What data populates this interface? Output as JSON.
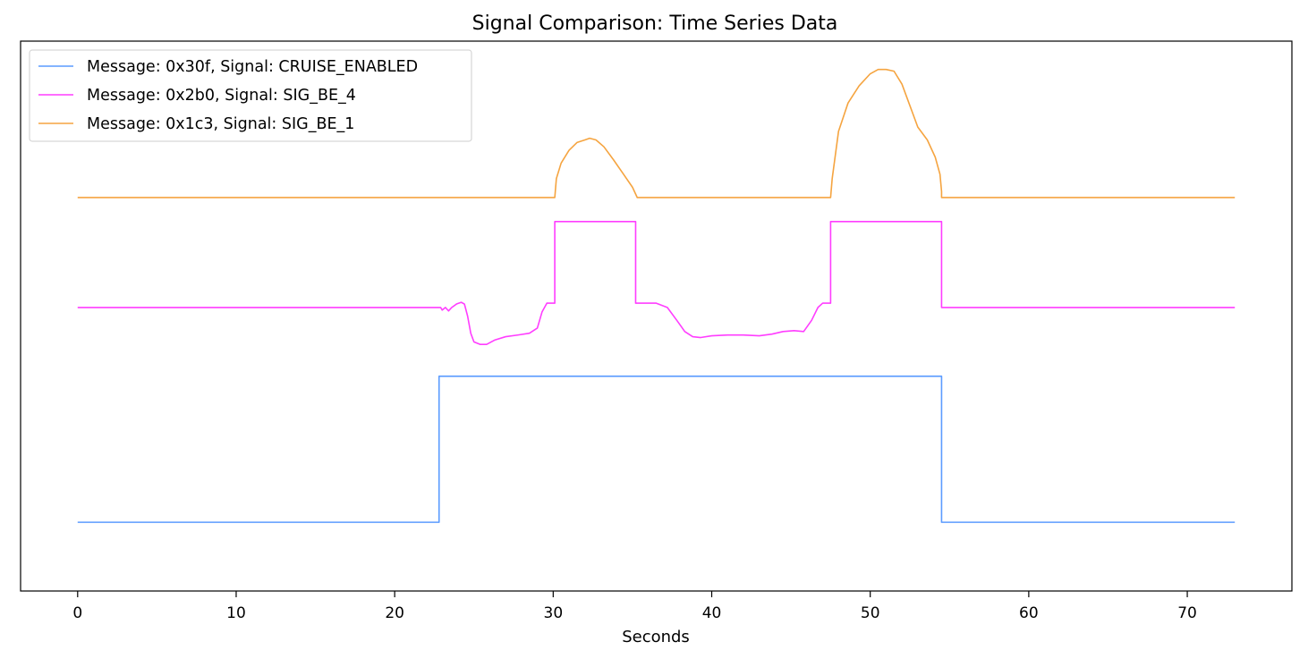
{
  "chart_data": {
    "type": "line",
    "title": "Signal Comparison: Time Series Data",
    "xlabel": "Seconds",
    "ylabel": "",
    "xlim": [
      -3.6,
      76.6
    ],
    "ylim": [
      -0.8,
      5.6
    ],
    "x_ticks": [
      0,
      10,
      20,
      30,
      40,
      50,
      60,
      70
    ],
    "y_ticks_shown": false,
    "grid": false,
    "legend_position": "upper-left",
    "series": [
      {
        "name": "Message: 0x30f, Signal: CRUISE_ENABLED",
        "color": "#5c9cff",
        "points": [
          [
            0,
            0
          ],
          [
            22.8,
            0
          ],
          [
            22.8,
            1.7
          ],
          [
            54.5,
            1.7
          ],
          [
            54.5,
            0
          ],
          [
            73,
            0
          ]
        ]
      },
      {
        "name": "Message: 0x2b0, Signal: SIG_BE_4",
        "color": "#ff3dff",
        "points": [
          [
            0,
            2.5
          ],
          [
            22.9,
            2.5
          ],
          [
            23.0,
            2.47
          ],
          [
            23.2,
            2.5
          ],
          [
            23.4,
            2.46
          ],
          [
            23.6,
            2.5
          ],
          [
            23.9,
            2.54
          ],
          [
            24.2,
            2.56
          ],
          [
            24.4,
            2.54
          ],
          [
            24.6,
            2.4
          ],
          [
            24.8,
            2.2
          ],
          [
            25.0,
            2.1
          ],
          [
            25.4,
            2.07
          ],
          [
            25.8,
            2.07
          ],
          [
            26.3,
            2.12
          ],
          [
            27.0,
            2.16
          ],
          [
            27.8,
            2.18
          ],
          [
            28.5,
            2.2
          ],
          [
            29.0,
            2.26
          ],
          [
            29.3,
            2.45
          ],
          [
            29.6,
            2.55
          ],
          [
            30.0,
            2.55
          ],
          [
            30.1,
            2.55
          ],
          [
            30.1,
            3.5
          ],
          [
            35.2,
            3.5
          ],
          [
            35.2,
            2.55
          ],
          [
            36.5,
            2.55
          ],
          [
            37.2,
            2.5
          ],
          [
            37.8,
            2.35
          ],
          [
            38.3,
            2.22
          ],
          [
            38.8,
            2.16
          ],
          [
            39.3,
            2.15
          ],
          [
            40.0,
            2.17
          ],
          [
            41.0,
            2.18
          ],
          [
            42.0,
            2.18
          ],
          [
            43.0,
            2.17
          ],
          [
            43.8,
            2.19
          ],
          [
            44.5,
            2.22
          ],
          [
            45.2,
            2.23
          ],
          [
            45.8,
            2.22
          ],
          [
            46.3,
            2.35
          ],
          [
            46.7,
            2.5
          ],
          [
            47.0,
            2.55
          ],
          [
            47.5,
            2.55
          ],
          [
            47.5,
            3.5
          ],
          [
            54.5,
            3.5
          ],
          [
            54.5,
            2.5
          ],
          [
            73,
            2.5
          ]
        ]
      },
      {
        "name": "Message: 0x1c3, Signal: SIG_BE_1",
        "color": "#f5a440",
        "points": [
          [
            0,
            3.78
          ],
          [
            30.1,
            3.78
          ],
          [
            30.2,
            4.0
          ],
          [
            30.5,
            4.18
          ],
          [
            31.0,
            4.33
          ],
          [
            31.5,
            4.42
          ],
          [
            32.0,
            4.45
          ],
          [
            32.3,
            4.47
          ],
          [
            32.7,
            4.45
          ],
          [
            33.2,
            4.37
          ],
          [
            33.8,
            4.22
          ],
          [
            34.4,
            4.06
          ],
          [
            35.0,
            3.9
          ],
          [
            35.3,
            3.78
          ],
          [
            47.5,
            3.78
          ],
          [
            47.6,
            4.0
          ],
          [
            48.0,
            4.55
          ],
          [
            48.6,
            4.88
          ],
          [
            49.3,
            5.08
          ],
          [
            50.0,
            5.22
          ],
          [
            50.5,
            5.27
          ],
          [
            51.0,
            5.27
          ],
          [
            51.5,
            5.25
          ],
          [
            52.0,
            5.1
          ],
          [
            52.5,
            4.85
          ],
          [
            53.0,
            4.6
          ],
          [
            53.6,
            4.45
          ],
          [
            54.1,
            4.25
          ],
          [
            54.4,
            4.05
          ],
          [
            54.5,
            3.85
          ],
          [
            54.5,
            3.78
          ],
          [
            73,
            3.78
          ]
        ]
      }
    ]
  }
}
